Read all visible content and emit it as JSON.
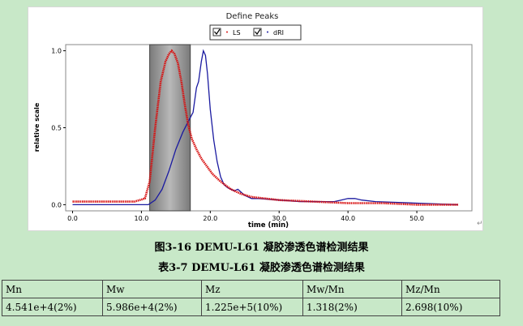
{
  "chart_data": {
    "type": "line",
    "title": "Define Peaks",
    "xlabel": "time (min)",
    "ylabel": "relative scale",
    "xlim": [
      -1,
      58
    ],
    "ylim": [
      -0.04,
      1.04
    ],
    "xticks": [
      0.0,
      10.0,
      20.0,
      30.0,
      40.0,
      50.0
    ],
    "xtick_labels": [
      "0.0",
      "10.0",
      "20.0",
      "30.0",
      "40.0",
      "50.0"
    ],
    "yticks": [
      0.0,
      0.5,
      1.0
    ],
    "ytick_labels": [
      "0.0",
      "0.5",
      "1.0"
    ],
    "legend_position": "top-center",
    "peak_region": [
      11.2,
      17.1
    ],
    "series": [
      {
        "name": "LS",
        "color": "#d81010",
        "x": [
          0,
          5,
          9,
          10.5,
          11.2,
          12,
          12.8,
          13.5,
          14,
          14.4,
          14.8,
          15.3,
          15.8,
          16.3,
          16.8,
          17.3,
          18,
          18.7,
          19.5,
          20.3,
          21.5,
          23,
          24.5,
          26,
          28,
          30,
          35,
          40,
          45,
          50,
          56
        ],
        "y": [
          0.02,
          0.02,
          0.02,
          0.04,
          0.15,
          0.5,
          0.8,
          0.93,
          0.98,
          1.0,
          0.98,
          0.92,
          0.8,
          0.65,
          0.52,
          0.43,
          0.36,
          0.3,
          0.25,
          0.2,
          0.15,
          0.1,
          0.07,
          0.05,
          0.04,
          0.03,
          0.02,
          0.01,
          0.01,
          0.0,
          0.0
        ]
      },
      {
        "name": "dRI",
        "color": "#1a1aa0",
        "x": [
          0,
          5,
          10,
          11,
          12,
          13,
          14,
          15,
          16,
          16.8,
          17.5,
          18,
          18.3,
          18.7,
          19,
          19.3,
          19.6,
          20,
          20.5,
          21,
          21.5,
          22,
          22.5,
          23,
          23.5,
          24,
          25,
          26,
          27,
          30,
          33,
          36,
          38,
          39,
          40,
          41,
          42,
          44,
          50,
          56
        ],
        "y": [
          0.0,
          0.0,
          0.0,
          0.0,
          0.03,
          0.1,
          0.22,
          0.36,
          0.47,
          0.54,
          0.6,
          0.76,
          0.8,
          0.93,
          1.0,
          0.97,
          0.85,
          0.62,
          0.42,
          0.28,
          0.18,
          0.13,
          0.11,
          0.1,
          0.09,
          0.1,
          0.06,
          0.04,
          0.04,
          0.03,
          0.02,
          0.02,
          0.02,
          0.03,
          0.04,
          0.04,
          0.03,
          0.02,
          0.01,
          0.0
        ]
      }
    ]
  },
  "captions": {
    "figure": "图3-16    DEMU-L61  凝胶渗透色谱检测结果",
    "table": "表3-7    DEMU-L61  凝胶渗透色谱检测结果"
  },
  "table": {
    "headers": [
      "Mn",
      "Mw",
      "Mz",
      "Mw/Mn",
      "Mz/Mn"
    ],
    "rows": [
      [
        "4.541e+4(2%)",
        "5.986e+4(2%)",
        "1.225e+5(10%)",
        "1.318(2%)",
        "2.698(10%)"
      ]
    ]
  },
  "colors": {
    "background": "#c8e8c8",
    "region_fill": "#909090",
    "ls": "#d81010",
    "dri": "#1a1aa0"
  }
}
